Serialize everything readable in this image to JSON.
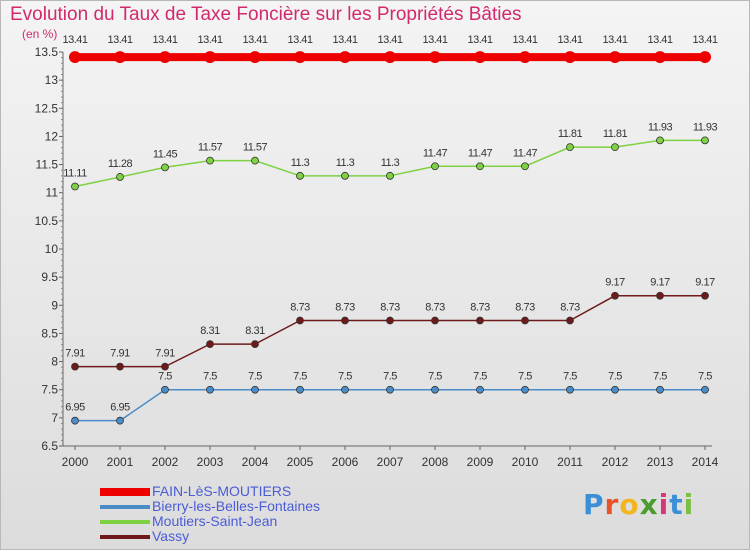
{
  "chart_data": {
    "type": "line",
    "title": "Evolution du Taux de Taxe Foncière sur les Propriétés Bâties",
    "ylabel": "(en %)",
    "xlabel": "",
    "ylim": [
      6.5,
      13.5
    ],
    "yticks": [
      "6.5",
      "7",
      "7.5",
      "8",
      "8.5",
      "9",
      "9.5",
      "10",
      "10.5",
      "11",
      "11.5",
      "12",
      "12.5",
      "13",
      "13.5"
    ],
    "categories": [
      "2000",
      "2001",
      "2002",
      "2003",
      "2004",
      "2005",
      "2006",
      "2007",
      "2008",
      "2009",
      "2010",
      "2011",
      "2012",
      "2013",
      "2014"
    ],
    "grid": false,
    "series": [
      {
        "name": "FAIN-LèS-MOUTIERS",
        "color": "#ee0000",
        "values": [
          13.41,
          13.41,
          13.41,
          13.41,
          13.41,
          13.41,
          13.41,
          13.41,
          13.41,
          13.41,
          13.41,
          13.41,
          13.41,
          13.41,
          13.41
        ],
        "labels": [
          "13.41",
          "13.41",
          "13.41",
          "13.41",
          "13.41",
          "13.41",
          "13.41",
          "13.41",
          "13.41",
          "13.41",
          "13.41",
          "13.41",
          "13.41",
          "13.41",
          "13.41"
        ]
      },
      {
        "name": "Bierry-les-Belles-Fontaines",
        "color": "#4a8cc8",
        "values": [
          6.95,
          6.95,
          7.5,
          7.5,
          7.5,
          7.5,
          7.5,
          7.5,
          7.5,
          7.5,
          7.5,
          7.5,
          7.5,
          7.5,
          7.5
        ],
        "labels": [
          "6.95",
          "6.95",
          "7.5",
          "7.5",
          "7.5",
          "7.5",
          "7.5",
          "7.5",
          "7.5",
          "7.5",
          "7.5",
          "7.5",
          "7.5",
          "7.5",
          "7.5"
        ]
      },
      {
        "name": "Moutiers-Saint-Jean",
        "color": "#7ed142",
        "values": [
          11.11,
          11.28,
          11.45,
          11.57,
          11.57,
          11.3,
          11.3,
          11.3,
          11.47,
          11.47,
          11.47,
          11.81,
          11.81,
          11.93,
          11.93
        ],
        "labels": [
          "11.11",
          "11.28",
          "11.45",
          "11.57",
          "11.57",
          "11.3",
          "11.3",
          "11.3",
          "11.47",
          "11.47",
          "11.47",
          "11.81",
          "11.81",
          "11.93",
          "11.93"
        ]
      },
      {
        "name": "Vassy",
        "color": "#6e1a1a",
        "values": [
          7.91,
          7.91,
          7.91,
          8.31,
          8.31,
          8.73,
          8.73,
          8.73,
          8.73,
          8.73,
          8.73,
          8.73,
          9.17,
          9.17,
          9.17
        ],
        "labels": [
          "7.91",
          "7.91",
          "7.91",
          "8.31",
          "8.31",
          "8.73",
          "8.73",
          "8.73",
          "8.73",
          "8.73",
          "8.73",
          "8.73",
          "9.17",
          "9.17",
          "9.17"
        ]
      }
    ]
  },
  "logo": {
    "letters": [
      "P",
      "r",
      "o",
      "x",
      "i",
      "t",
      "i"
    ],
    "colors": [
      "#3a8fd6",
      "#e8542a",
      "#f2b61c",
      "#4a9c2e",
      "#d8367a",
      "#3a8fd6",
      "#7ac142"
    ]
  }
}
